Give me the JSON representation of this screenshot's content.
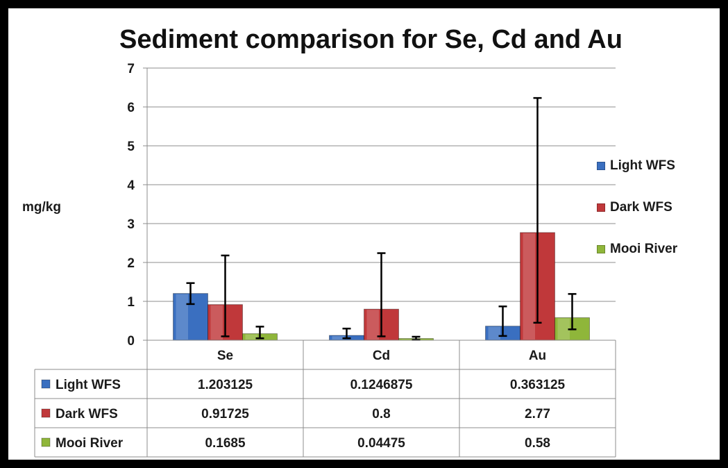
{
  "chart_data": {
    "type": "bar",
    "title": "Sediment comparison for Se, Cd and Au",
    "ylabel": "mg/kg",
    "xlabel": "",
    "categories": [
      "Se",
      "Cd",
      "Au"
    ],
    "ylim": [
      0,
      7
    ],
    "yticks": [
      "0",
      "1",
      "2",
      "3",
      "4",
      "5",
      "6",
      "7"
    ],
    "grid": true,
    "legend_position": "right",
    "has_data_table": true,
    "series": [
      {
        "name": "Light WFS",
        "color": "#3a6fc0",
        "values": [
          1.203125,
          0.1246875,
          0.363125
        ],
        "table_values": [
          "1.203125",
          "0.1246875",
          "0.363125"
        ],
        "error_low": [
          0.93,
          0.05,
          0.11
        ],
        "error_high": [
          1.47,
          0.3,
          0.87
        ]
      },
      {
        "name": "Dark WFS",
        "color": "#c0383a",
        "values": [
          0.91725,
          0.8,
          2.77
        ],
        "table_values": [
          "0.91725",
          "0.8",
          "2.77"
        ],
        "error_low": [
          0.1,
          0.1,
          0.45
        ],
        "error_high": [
          2.18,
          2.24,
          6.23
        ]
      },
      {
        "name": "Mooi River",
        "color": "#8fb63a",
        "values": [
          0.1685,
          0.04475,
          0.58
        ],
        "table_values": [
          "0.1685",
          "0.04475",
          "0.58"
        ],
        "error_low": [
          0.05,
          0.01,
          0.28
        ],
        "error_high": [
          0.35,
          0.09,
          1.19
        ]
      }
    ]
  }
}
